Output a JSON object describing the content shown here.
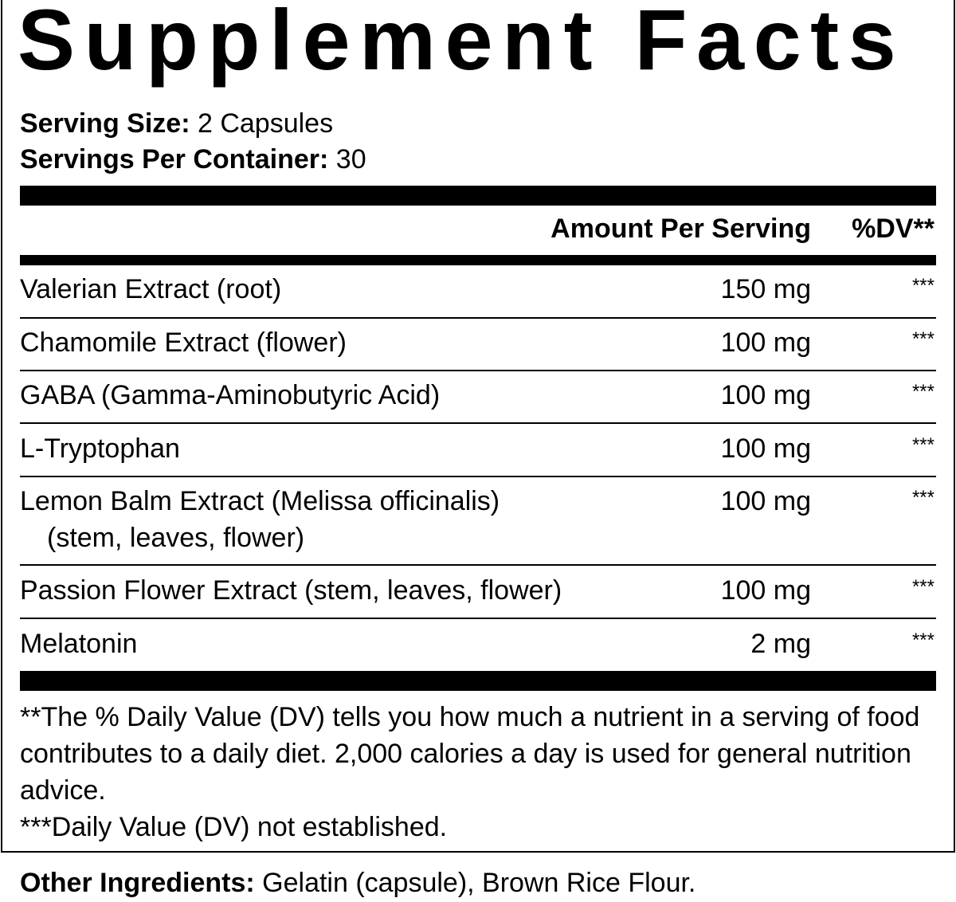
{
  "title": "Supplement Facts",
  "serving_size": {
    "label": "Serving Size:",
    "value": "2 Capsules"
  },
  "servings_per_container": {
    "label": "Servings Per Container:",
    "value": "30"
  },
  "header": {
    "amount": "Amount Per Serving",
    "dv": "%DV**"
  },
  "rows": [
    {
      "name": "Valerian Extract (root)",
      "amount": "150 mg",
      "dv": "***"
    },
    {
      "name": "Chamomile Extract (flower)",
      "amount": "100 mg",
      "dv": "***"
    },
    {
      "name": "GABA (Gamma-Aminobutyric Acid)",
      "amount": "100 mg",
      "dv": "***"
    },
    {
      "name": "L-Tryptophan",
      "amount": "100 mg",
      "dv": "***"
    },
    {
      "name": "Lemon Balm Extract (Melissa officinalis)",
      "sub": "(stem, leaves, flower)",
      "amount": "100 mg",
      "dv": "***"
    },
    {
      "name": "Passion Flower Extract (stem, leaves, flower)",
      "amount": "100 mg",
      "dv": "***"
    },
    {
      "name": "Melatonin",
      "amount": "2 mg",
      "dv": "***"
    }
  ],
  "footnotes": [
    "**The % Daily Value (DV) tells you how much a nutrient in a serving of food contributes to a daily diet. 2,000 calories a day is used for general nutrition advice.",
    "***Daily Value (DV) not established."
  ],
  "other_ingredients": {
    "label": "Other Ingredients:",
    "value": "Gelatin (capsule), Brown Rice Flour."
  }
}
